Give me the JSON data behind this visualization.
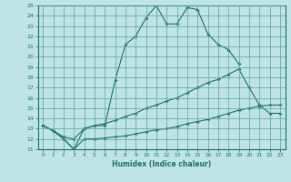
{
  "xlabel": "Humidex (Indice chaleur)",
  "bg_color": "#c0e4e4",
  "grid_color": "#5aa0a0",
  "line_color": "#1a7068",
  "xlim": [
    -0.5,
    23.5
  ],
  "ylim": [
    11,
    25
  ],
  "xticks": [
    0,
    1,
    2,
    3,
    4,
    5,
    6,
    7,
    8,
    9,
    10,
    11,
    12,
    13,
    14,
    15,
    16,
    17,
    18,
    19,
    20,
    21,
    22,
    23
  ],
  "yticks": [
    11,
    12,
    13,
    14,
    15,
    16,
    17,
    18,
    19,
    20,
    21,
    22,
    23,
    24,
    25
  ],
  "line1_x": [
    0,
    1,
    2,
    3,
    4,
    5,
    6,
    7,
    8,
    9,
    10,
    11,
    12,
    13,
    14,
    15,
    16,
    17,
    18,
    19
  ],
  "line1_y": [
    13.3,
    12.8,
    12.0,
    11.0,
    13.0,
    13.3,
    13.3,
    17.7,
    21.2,
    22.0,
    23.8,
    25.0,
    23.2,
    23.2,
    24.8,
    24.6,
    22.2,
    21.2,
    20.7,
    19.3
  ],
  "line2_x": [
    0,
    1,
    2,
    3,
    4,
    5,
    6,
    7,
    8,
    9,
    10,
    11,
    12,
    13,
    14,
    15,
    16,
    17,
    18,
    19,
    20,
    21,
    22,
    23
  ],
  "line2_y": [
    13.3,
    12.8,
    12.2,
    12.0,
    13.0,
    13.3,
    13.5,
    13.8,
    14.2,
    14.5,
    15.0,
    15.3,
    15.7,
    16.0,
    16.5,
    17.0,
    17.5,
    17.8,
    18.3,
    18.8,
    17.0,
    15.3,
    14.5,
    14.5
  ],
  "line3_x": [
    0,
    1,
    2,
    3,
    4,
    5,
    6,
    7,
    8,
    9,
    10,
    11,
    12,
    13,
    14,
    15,
    16,
    17,
    18,
    19,
    20,
    21,
    22,
    23
  ],
  "line3_y": [
    13.3,
    12.8,
    12.0,
    11.0,
    12.0,
    12.0,
    12.1,
    12.2,
    12.3,
    12.5,
    12.7,
    12.9,
    13.0,
    13.2,
    13.5,
    13.7,
    13.9,
    14.2,
    14.5,
    14.8,
    15.0,
    15.2,
    15.3,
    15.3
  ]
}
